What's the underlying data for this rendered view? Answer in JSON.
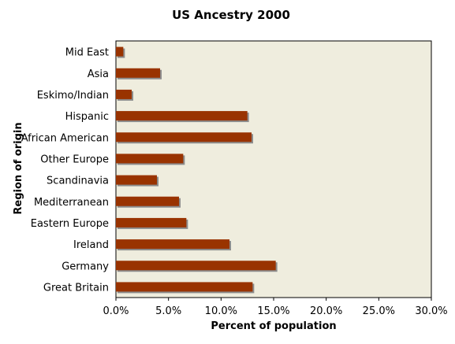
{
  "chart_data": {
    "type": "bar",
    "orientation": "horizontal",
    "title": "US Ancestry 2000",
    "xlabel": "Percent of population",
    "ylabel": "Region of origin",
    "categories": [
      "Mid East",
      "Asia",
      "Eskimo/Indian",
      "Hispanic",
      "African American",
      "Other Europe",
      "Scandinavia",
      "Mediterranean",
      "Eastern Europe",
      "Ireland",
      "Germany",
      "Great Britain"
    ],
    "values": [
      0.7,
      4.2,
      1.5,
      12.5,
      12.9,
      6.4,
      3.9,
      6.0,
      6.7,
      10.8,
      15.2,
      13.0
    ],
    "xlim": [
      0,
      30
    ],
    "xticks": [
      "0.0%",
      "5.0%",
      "10.0%",
      "15.0%",
      "20.0%",
      "25.0%",
      "30.0%"
    ],
    "grid": false,
    "legend": "none",
    "colors": {
      "bar": "#993300",
      "bar_shadow": "#8c8c8c",
      "plot_background": "#efedde",
      "axis": "#000000"
    }
  }
}
